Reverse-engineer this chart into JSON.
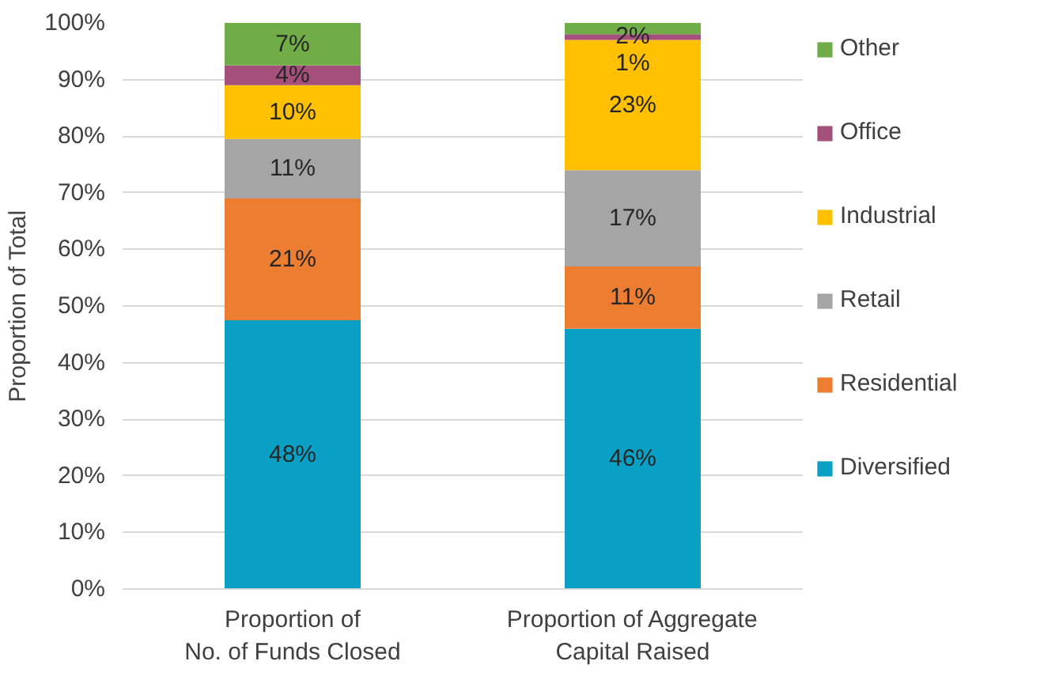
{
  "chart_data": {
    "type": "bar",
    "stacked": true,
    "ylabel": "Proportion of Total",
    "categories": [
      "Proportion of\nNo. of Funds Closed",
      "Proportion of Aggregate\nCapital Raised"
    ],
    "ylim": [
      0,
      100
    ],
    "yticks": [
      {
        "value": 0,
        "label": "0%"
      },
      {
        "value": 10,
        "label": "10%"
      },
      {
        "value": 20,
        "label": "20%"
      },
      {
        "value": 30,
        "label": "30%"
      },
      {
        "value": 40,
        "label": "40%"
      },
      {
        "value": 50,
        "label": "50%"
      },
      {
        "value": 60,
        "label": "60%"
      },
      {
        "value": 70,
        "label": "70%"
      },
      {
        "value": 80,
        "label": "80%"
      },
      {
        "value": 90,
        "label": "90%"
      },
      {
        "value": 100,
        "label": "100%"
      }
    ],
    "grid": "y",
    "legend": "right",
    "series": [
      {
        "name": "Diversified",
        "color": "#0aa0c6",
        "values": [
          47.5,
          46
        ],
        "value_labels": [
          "48%",
          "46%"
        ]
      },
      {
        "name": "Residential",
        "color": "#ed7d31",
        "values": [
          21.5,
          11
        ],
        "value_labels": [
          "21%",
          "11%"
        ]
      },
      {
        "name": "Retail",
        "color": "#a5a5a5",
        "values": [
          10.5,
          17
        ],
        "value_labels": [
          "11%",
          "17%"
        ]
      },
      {
        "name": "Industrial",
        "color": "#ffc000",
        "values": [
          9.5,
          23
        ],
        "value_labels": [
          "10%",
          "23%"
        ]
      },
      {
        "name": "Office",
        "color": "#a5507a",
        "values": [
          3.5,
          1
        ],
        "value_labels": [
          "4%",
          "1%"
        ]
      },
      {
        "name": "Other",
        "color": "#70ad47",
        "values": [
          7.5,
          2
        ],
        "value_labels": [
          "7%",
          "2%"
        ]
      }
    ]
  }
}
